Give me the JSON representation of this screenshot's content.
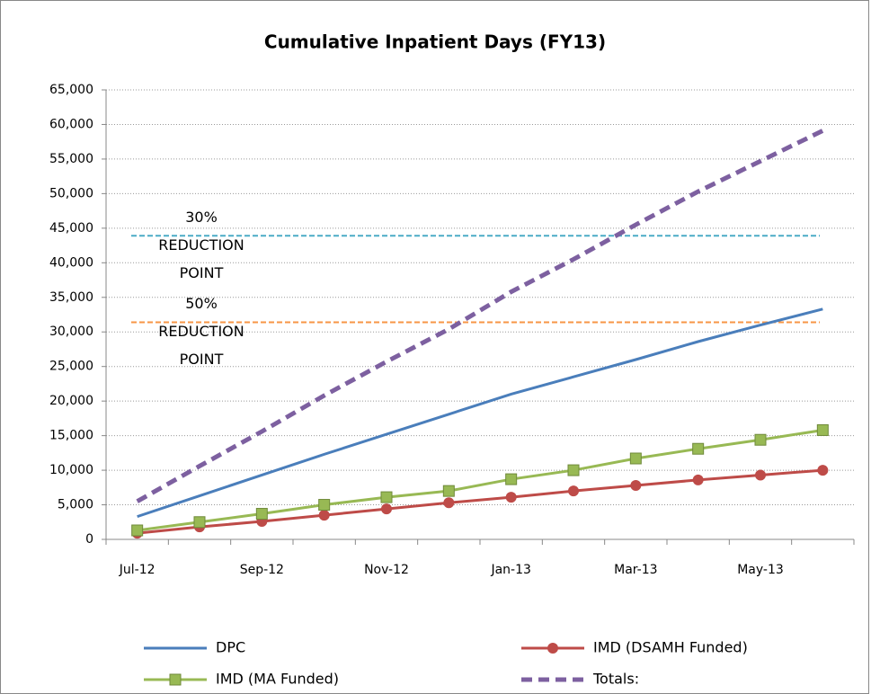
{
  "chart_data": {
    "type": "line",
    "title": "Cumulative Inpatient Days (FY13)",
    "categories": [
      "Jul-12",
      null,
      "Sep-12",
      null,
      "Nov-12",
      null,
      "Jan-13",
      null,
      "Mar-13",
      null,
      "May-13",
      null
    ],
    "series": [
      {
        "name": "DPC",
        "color": "#4a7ebb",
        "marker": "none",
        "dash": false,
        "values": [
          3300,
          6300,
          9300,
          12300,
          15200,
          18100,
          21000,
          23500,
          26000,
          28600,
          31000,
          33300
        ]
      },
      {
        "name": "IMD (DSAMH Funded)",
        "color": "#be4b48",
        "marker": "circle",
        "dash": false,
        "values": [
          900,
          1800,
          2600,
          3500,
          4400,
          5300,
          6100,
          7000,
          7800,
          8600,
          9300,
          10000
        ]
      },
      {
        "name": "IMD (MA Funded)",
        "color": "#98b954",
        "marker": "square",
        "dash": false,
        "values": [
          1300,
          2500,
          3700,
          5000,
          6100,
          7000,
          8700,
          10000,
          11700,
          13100,
          14400,
          15800
        ]
      },
      {
        "name": "Totals:",
        "color": "#7d60a0",
        "marker": "none",
        "dash": true,
        "values": [
          5500,
          10600,
          15600,
          20800,
          25700,
          30400,
          35800,
          40500,
          45500,
          50300,
          54700,
          59100
        ]
      }
    ],
    "reference_lines": [
      {
        "value": 43900,
        "color": "#4bacc6",
        "label": [
          "30%",
          "REDUCTION",
          "POINT"
        ]
      },
      {
        "value": 31400,
        "color": "#f79646",
        "label": [
          "50%",
          "REDUCTION",
          "POINT"
        ]
      }
    ],
    "ylim": [
      0,
      65000
    ],
    "yticks": [
      0,
      {
        "value": 5000,
        "label": "5,000"
      },
      {
        "value": 10000,
        "label": "10,000"
      },
      {
        "value": 15000,
        "label": "15,000"
      },
      {
        "value": 20000,
        "label": "20,000"
      },
      {
        "value": 25000,
        "label": "25,000"
      },
      {
        "value": 30000,
        "label": "30,000"
      },
      {
        "value": 35000,
        "label": "35,000"
      },
      {
        "value": 40000,
        "label": "40,000"
      },
      {
        "value": 45000,
        "label": "45,000"
      },
      {
        "value": 50000,
        "label": "50,000"
      },
      {
        "value": 55000,
        "label": "55,000"
      },
      {
        "value": 60000,
        "label": "60,000"
      },
      {
        "value": 65000,
        "label": "65,000"
      }
    ],
    "grid": true,
    "legend": "bottom"
  }
}
